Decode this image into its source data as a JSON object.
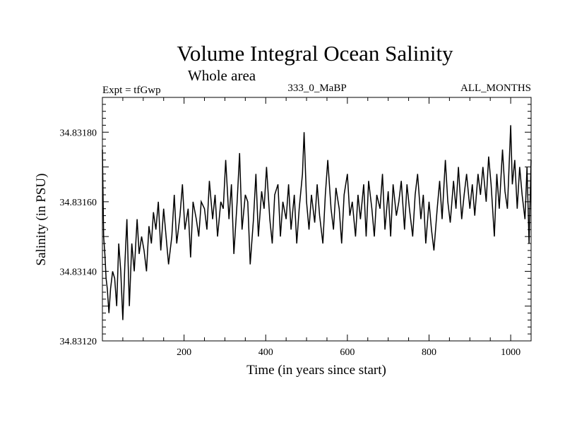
{
  "chart_data": {
    "type": "line",
    "title": "Volume Integral Ocean Salinity",
    "subtitle": "Whole area",
    "header_left": "Expt = tfGwp",
    "header_center": "333_0_MaBP",
    "header_right": "ALL_MONTHS",
    "xlabel": "Time (in years since start)",
    "ylabel": "Salinity (in PSU)",
    "xlim": [
      0,
      1050
    ],
    "ylim": [
      34.8312,
      34.8319
    ],
    "x_ticks": [
      200,
      400,
      600,
      800,
      1000
    ],
    "x_tick_labels": [
      "200",
      "400",
      "600",
      "800",
      "1000"
    ],
    "y_ticks": [
      34.8312,
      34.8314,
      34.8316,
      34.8318
    ],
    "y_tick_labels": [
      "34.83120",
      "34.83140",
      "34.83160",
      "34.83180"
    ],
    "series": [
      {
        "name": "Salinity",
        "color": "#000000",
        "x": [
          0,
          3,
          6,
          9,
          12,
          16,
          20,
          25,
          30,
          35,
          40,
          45,
          50,
          55,
          60,
          66,
          72,
          78,
          85,
          90,
          96,
          102,
          108,
          114,
          120,
          125,
          131,
          137,
          143,
          150,
          156,
          162,
          170,
          176,
          182,
          190,
          196,
          202,
          210,
          216,
          222,
          230,
          236,
          242,
          250,
          256,
          262,
          270,
          276,
          282,
          290,
          296,
          302,
          310,
          316,
          322,
          330,
          336,
          342,
          350,
          356,
          362,
          370,
          376,
          382,
          390,
          396,
          402,
          410,
          416,
          422,
          430,
          436,
          442,
          450,
          456,
          462,
          470,
          476,
          482,
          490,
          494,
          500,
          506,
          512,
          520,
          526,
          532,
          540,
          546,
          552,
          560,
          566,
          572,
          580,
          586,
          592,
          600,
          606,
          612,
          620,
          626,
          632,
          640,
          646,
          652,
          660,
          666,
          672,
          680,
          686,
          692,
          700,
          706,
          712,
          720,
          726,
          732,
          740,
          746,
          752,
          760,
          766,
          772,
          780,
          786,
          792,
          800,
          806,
          812,
          820,
          826,
          832,
          840,
          846,
          852,
          860,
          866,
          872,
          880,
          886,
          892,
          900,
          906,
          912,
          920,
          926,
          932,
          940,
          946,
          952,
          960,
          966,
          972,
          980,
          986,
          992,
          1000,
          1004,
          1010,
          1016,
          1022,
          1028,
          1035,
          1040,
          1045,
          1050
        ],
        "values": [
          34.83175,
          34.8315,
          34.83145,
          34.83138,
          34.83135,
          34.83128,
          34.83135,
          34.8314,
          34.83138,
          34.8313,
          34.83148,
          34.8314,
          34.83126,
          34.83142,
          34.83155,
          34.8313,
          34.83148,
          34.8314,
          34.83155,
          34.83145,
          34.8315,
          34.83146,
          34.8314,
          34.83153,
          34.83148,
          34.83157,
          34.83152,
          34.8316,
          34.83146,
          34.83158,
          34.8315,
          34.83142,
          34.8315,
          34.83162,
          34.83148,
          34.83156,
          34.83165,
          34.83152,
          34.83158,
          34.83144,
          34.8316,
          34.83155,
          34.8315,
          34.8316,
          34.83158,
          34.83152,
          34.83166,
          34.83155,
          34.83162,
          34.8315,
          34.8316,
          34.83158,
          34.83172,
          34.83155,
          34.83165,
          34.83145,
          34.8316,
          34.83174,
          34.83152,
          34.83162,
          34.8316,
          34.83142,
          34.83155,
          34.83168,
          34.8315,
          34.83163,
          34.83158,
          34.8317,
          34.83155,
          34.83148,
          34.83162,
          34.83165,
          34.8315,
          34.8316,
          34.83155,
          34.83165,
          34.83152,
          34.83162,
          34.83148,
          34.83158,
          34.83168,
          34.8318,
          34.8316,
          34.83152,
          34.83162,
          34.83154,
          34.83165,
          34.83156,
          34.83148,
          34.83162,
          34.83172,
          34.83158,
          34.83152,
          34.83164,
          34.83158,
          34.83148,
          34.83162,
          34.83168,
          34.83156,
          34.8316,
          34.8315,
          34.83162,
          34.83155,
          34.83165,
          34.8315,
          34.83166,
          34.83158,
          34.8315,
          34.83162,
          34.83158,
          34.83168,
          34.83152,
          34.83163,
          34.8315,
          34.83165,
          34.83156,
          34.8316,
          34.83166,
          34.83152,
          34.83165,
          34.83158,
          34.8315,
          34.83162,
          34.83168,
          34.83155,
          34.83162,
          34.83148,
          34.8316,
          34.83152,
          34.83146,
          34.83158,
          34.83166,
          34.83155,
          34.83172,
          34.8316,
          34.83154,
          34.83166,
          34.83158,
          34.8317,
          34.83155,
          34.83162,
          34.83168,
          34.83158,
          34.83165,
          34.83156,
          34.83168,
          34.83162,
          34.8317,
          34.8316,
          34.83173,
          34.83165,
          34.8315,
          34.83168,
          34.83158,
          34.83175,
          34.83163,
          34.83158,
          34.83182,
          34.83165,
          34.83172,
          34.83158,
          34.8317,
          34.83162,
          34.83155,
          34.8317,
          34.83148,
          34.83172
        ]
      }
    ]
  }
}
